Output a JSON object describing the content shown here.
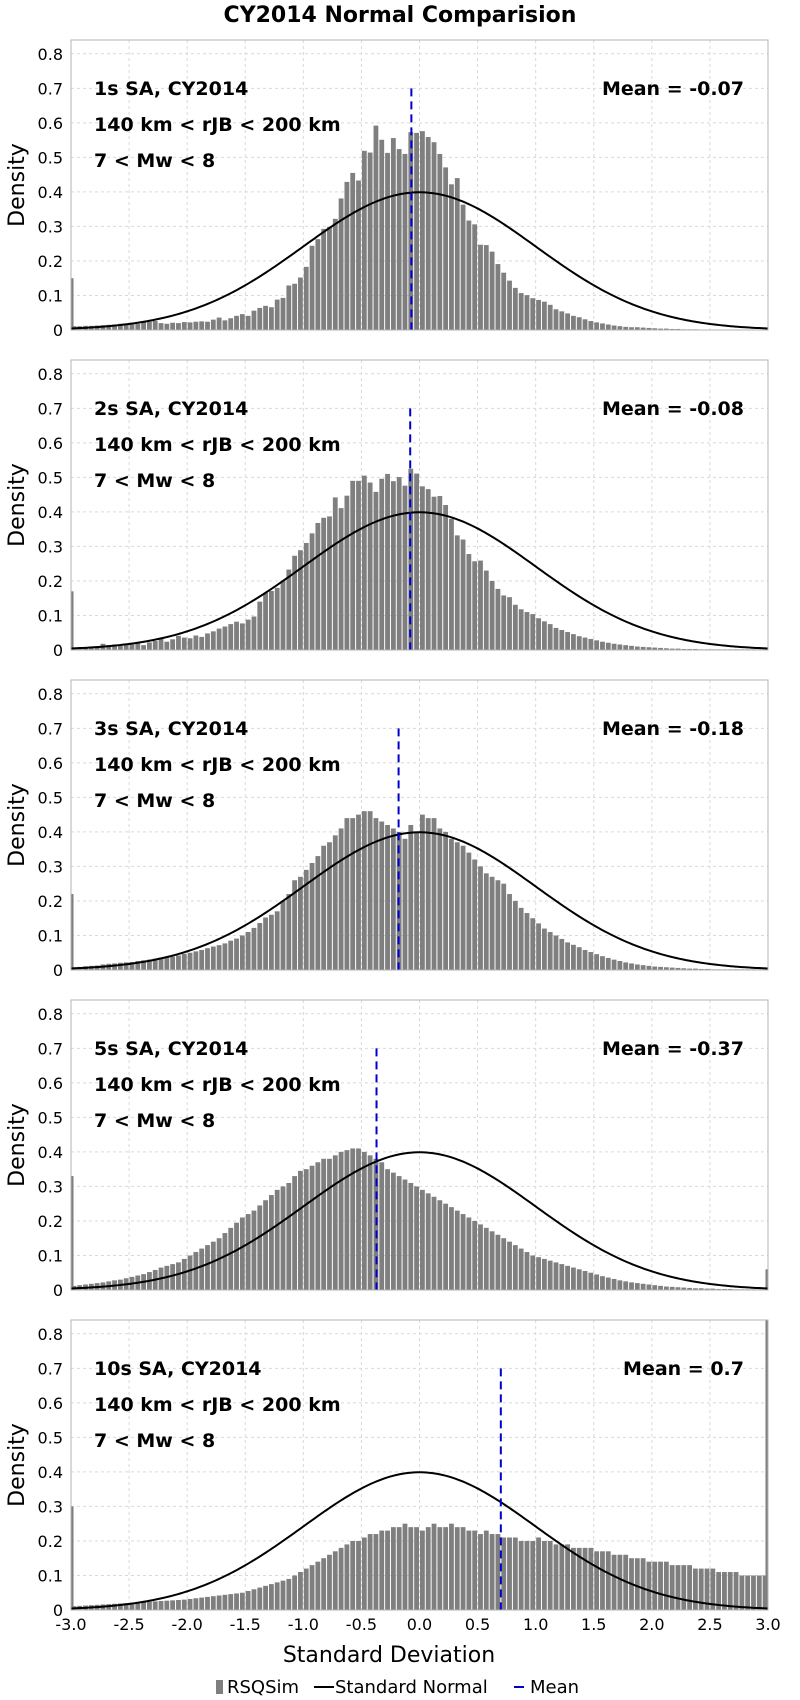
{
  "figure": {
    "title": "CY2014 Normal Comparision",
    "xlabel": "Standard Deviation",
    "ylabel": "Density"
  },
  "legend": {
    "placement": "bottom",
    "items": [
      "RSQSim",
      "Standard Normal",
      "Mean"
    ]
  },
  "colors": {
    "bars": "#7f7f7f",
    "normal_curve": "#000000",
    "mean_line": "#0000cc",
    "grid": "#d9d9d9",
    "frame": "#b3b3b3"
  },
  "chart_data": [
    {
      "type": "bar",
      "annotations": [
        "1s SA, CY2014",
        "140 km < rJB < 200 km",
        "7 < Mw < 8"
      ],
      "mean_label": "Mean = -0.07",
      "mean": -0.07,
      "mean_line_top": 0.7,
      "bin_width": 0.05,
      "x_start": -3.0,
      "xlim": [
        -3.0,
        3.0
      ],
      "ylim": [
        0,
        0.84
      ],
      "xticks": [
        "-3.0",
        "-2.5",
        "-2.0",
        "-1.5",
        "-1.0",
        "-0.5",
        "0.0",
        "0.5",
        "1.0",
        "1.5",
        "2.0",
        "2.5",
        "3.0"
      ],
      "yticks": [
        "0",
        "0.1",
        "0.2",
        "0.3",
        "0.4",
        "0.5",
        "0.6",
        "0.7",
        "0.8"
      ],
      "grid": true,
      "edge_left": 0.15,
      "edge_right": 0,
      "values": [
        0.011,
        0.011,
        0.012,
        0.012,
        0.013,
        0.014,
        0.015,
        0.016,
        0.018,
        0.019,
        0.021,
        0.018,
        0.022,
        0.024,
        0.026,
        0.02,
        0.018,
        0.021,
        0.02,
        0.023,
        0.022,
        0.024,
        0.025,
        0.024,
        0.03,
        0.036,
        0.028,
        0.034,
        0.041,
        0.046,
        0.041,
        0.056,
        0.064,
        0.07,
        0.066,
        0.088,
        0.093,
        0.129,
        0.134,
        0.152,
        0.183,
        0.244,
        0.263,
        0.293,
        0.299,
        0.322,
        0.381,
        0.429,
        0.455,
        0.433,
        0.519,
        0.514,
        0.592,
        0.551,
        0.513,
        0.556,
        0.524,
        0.51,
        0.573,
        0.571,
        0.576,
        0.559,
        0.544,
        0.51,
        0.471,
        0.422,
        0.44,
        0.363,
        0.317,
        0.306,
        0.247,
        0.246,
        0.227,
        0.191,
        0.166,
        0.143,
        0.122,
        0.107,
        0.101,
        0.092,
        0.087,
        0.082,
        0.073,
        0.06,
        0.054,
        0.048,
        0.041,
        0.037,
        0.031,
        0.026,
        0.022,
        0.019,
        0.016,
        0.013,
        0.011,
        0.009,
        0.008,
        0.008,
        0.007,
        0.006,
        0.005,
        0.004,
        0.004,
        0.003,
        0.003,
        0.002,
        0.002,
        0.002,
        0.001,
        0.001,
        0.001,
        0.001,
        0.001,
        0.001,
        0.001,
        0.001,
        0.001,
        0.001,
        0.001,
        0.001
      ],
      "normal_curve": {
        "mean": 0,
        "std": 1
      }
    },
    {
      "type": "bar",
      "annotations": [
        "2s SA, CY2014",
        "140 km < rJB < 200 km",
        "7 < Mw < 8"
      ],
      "mean_label": "Mean = -0.08",
      "mean": -0.08,
      "mean_line_top": 0.7,
      "bin_width": 0.05,
      "x_start": -3.0,
      "xlim": [
        -3.0,
        3.0
      ],
      "ylim": [
        0,
        0.84
      ],
      "xticks": [
        "-3.0",
        "-2.5",
        "-2.0",
        "-1.5",
        "-1.0",
        "-0.5",
        "0.0",
        "0.5",
        "1.0",
        "1.5",
        "2.0",
        "2.5",
        "3.0"
      ],
      "yticks": [
        "0",
        "0.1",
        "0.2",
        "0.3",
        "0.4",
        "0.5",
        "0.6",
        "0.7",
        "0.8"
      ],
      "grid": true,
      "edge_left": 0.17,
      "edge_right": 0,
      "values": [
        0.005,
        0.007,
        0.008,
        0.009,
        0.011,
        0.018,
        0.014,
        0.016,
        0.012,
        0.016,
        0.018,
        0.02,
        0.014,
        0.022,
        0.026,
        0.033,
        0.024,
        0.031,
        0.041,
        0.036,
        0.034,
        0.042,
        0.038,
        0.048,
        0.054,
        0.062,
        0.068,
        0.075,
        0.082,
        0.077,
        0.088,
        0.097,
        0.14,
        0.165,
        0.171,
        0.18,
        0.201,
        0.233,
        0.273,
        0.289,
        0.31,
        0.338,
        0.368,
        0.383,
        0.387,
        0.442,
        0.411,
        0.447,
        0.49,
        0.49,
        0.505,
        0.485,
        0.458,
        0.496,
        0.51,
        0.489,
        0.501,
        0.476,
        0.525,
        0.511,
        0.474,
        0.466,
        0.444,
        0.446,
        0.42,
        0.38,
        0.332,
        0.32,
        0.278,
        0.257,
        0.259,
        0.23,
        0.2,
        0.177,
        0.158,
        0.153,
        0.131,
        0.118,
        0.11,
        0.104,
        0.092,
        0.083,
        0.075,
        0.064,
        0.058,
        0.052,
        0.046,
        0.04,
        0.036,
        0.032,
        0.028,
        0.024,
        0.021,
        0.018,
        0.016,
        0.014,
        0.012,
        0.01,
        0.009,
        0.008,
        0.007,
        0.006,
        0.005,
        0.004,
        0.004,
        0.003,
        0.003,
        0.003,
        0.002,
        0.002,
        0.002,
        0.002,
        0.002,
        0.002,
        0.002,
        0.002,
        0.002,
        0.002,
        0.002,
        0.002
      ],
      "normal_curve": {
        "mean": 0,
        "std": 1
      }
    },
    {
      "type": "bar",
      "annotations": [
        "3s SA, CY2014",
        "140 km < rJB < 200 km",
        "7 < Mw < 8"
      ],
      "mean_label": "Mean = -0.18",
      "mean": -0.18,
      "mean_line_top": 0.7,
      "bin_width": 0.05,
      "x_start": -3.0,
      "xlim": [
        -3.0,
        3.0
      ],
      "ylim": [
        0,
        0.84
      ],
      "xticks": [
        "-3.0",
        "-2.5",
        "-2.0",
        "-1.5",
        "-1.0",
        "-0.5",
        "0.0",
        "0.5",
        "1.0",
        "1.5",
        "2.0",
        "2.5",
        "3.0"
      ],
      "yticks": [
        "0",
        "0.1",
        "0.2",
        "0.3",
        "0.4",
        "0.5",
        "0.6",
        "0.7",
        "0.8"
      ],
      "grid": true,
      "edge_left": 0.22,
      "edge_right": 0,
      "values": [
        0.008,
        0.009,
        0.011,
        0.012,
        0.013,
        0.016,
        0.018,
        0.019,
        0.021,
        0.022,
        0.023,
        0.026,
        0.028,
        0.03,
        0.033,
        0.036,
        0.036,
        0.039,
        0.042,
        0.047,
        0.05,
        0.054,
        0.058,
        0.063,
        0.068,
        0.072,
        0.077,
        0.085,
        0.091,
        0.1,
        0.11,
        0.122,
        0.136,
        0.152,
        0.16,
        0.17,
        0.2,
        0.22,
        0.26,
        0.27,
        0.29,
        0.31,
        0.33,
        0.36,
        0.37,
        0.39,
        0.41,
        0.44,
        0.44,
        0.45,
        0.46,
        0.46,
        0.44,
        0.43,
        0.42,
        0.41,
        0.4,
        0.38,
        0.42,
        0.4,
        0.45,
        0.44,
        0.44,
        0.41,
        0.4,
        0.38,
        0.37,
        0.36,
        0.34,
        0.32,
        0.3,
        0.28,
        0.27,
        0.26,
        0.25,
        0.22,
        0.2,
        0.18,
        0.165,
        0.15,
        0.135,
        0.12,
        0.11,
        0.1,
        0.09,
        0.08,
        0.073,
        0.066,
        0.058,
        0.052,
        0.046,
        0.04,
        0.035,
        0.03,
        0.026,
        0.022,
        0.019,
        0.016,
        0.014,
        0.012,
        0.01,
        0.009,
        0.008,
        0.007,
        0.006,
        0.005,
        0.004,
        0.004,
        0.003,
        0.003,
        0.002,
        0.002,
        0.002,
        0.002,
        0.002,
        0.002,
        0.002,
        0.002,
        0.002,
        0.002
      ],
      "normal_curve": {
        "mean": 0,
        "std": 1
      }
    },
    {
      "type": "bar",
      "annotations": [
        "5s SA, CY2014",
        "140 km < rJB < 200 km",
        "7 < Mw < 8"
      ],
      "mean_label": "Mean = -0.37",
      "mean": -0.37,
      "mean_line_top": 0.7,
      "bin_width": 0.05,
      "x_start": -3.0,
      "xlim": [
        -3.0,
        3.0
      ],
      "ylim": [
        0,
        0.84
      ],
      "xticks": [
        "-3.0",
        "-2.5",
        "-2.0",
        "-1.5",
        "-1.0",
        "-0.5",
        "0.0",
        "0.5",
        "1.0",
        "1.5",
        "2.0",
        "2.5",
        "3.0"
      ],
      "yticks": [
        "0",
        "0.1",
        "0.2",
        "0.3",
        "0.4",
        "0.5",
        "0.6",
        "0.7",
        "0.8"
      ],
      "grid": true,
      "edge_left": 0.33,
      "edge_right": 0.06,
      "values": [
        0.012,
        0.014,
        0.016,
        0.018,
        0.02,
        0.022,
        0.025,
        0.028,
        0.03,
        0.034,
        0.038,
        0.042,
        0.046,
        0.052,
        0.058,
        0.065,
        0.07,
        0.075,
        0.08,
        0.09,
        0.1,
        0.11,
        0.12,
        0.13,
        0.14,
        0.15,
        0.165,
        0.18,
        0.195,
        0.21,
        0.22,
        0.23,
        0.245,
        0.26,
        0.275,
        0.29,
        0.3,
        0.31,
        0.33,
        0.345,
        0.35,
        0.36,
        0.37,
        0.38,
        0.38,
        0.39,
        0.4,
        0.405,
        0.41,
        0.41,
        0.4,
        0.39,
        0.38,
        0.37,
        0.35,
        0.34,
        0.33,
        0.32,
        0.31,
        0.3,
        0.29,
        0.28,
        0.27,
        0.26,
        0.25,
        0.24,
        0.23,
        0.22,
        0.21,
        0.2,
        0.19,
        0.18,
        0.17,
        0.16,
        0.15,
        0.14,
        0.13,
        0.12,
        0.11,
        0.1,
        0.095,
        0.09,
        0.085,
        0.08,
        0.075,
        0.07,
        0.065,
        0.06,
        0.055,
        0.05,
        0.045,
        0.04,
        0.036,
        0.032,
        0.028,
        0.025,
        0.022,
        0.02,
        0.018,
        0.016,
        0.014,
        0.012,
        0.01,
        0.009,
        0.008,
        0.007,
        0.006,
        0.005,
        0.005,
        0.004,
        0.004,
        0.003,
        0.003,
        0.003,
        0.002,
        0.002,
        0.002,
        0.002,
        0.002,
        0.002
      ],
      "normal_curve": {
        "mean": 0,
        "std": 1
      }
    },
    {
      "type": "bar",
      "annotations": [
        "10s SA, CY2014",
        "140 km < rJB < 200 km",
        "7 < Mw < 8"
      ],
      "mean_label": "Mean = 0.7",
      "mean": 0.7,
      "mean_line_top": 0.7,
      "bin_width": 0.05,
      "x_start": -3.0,
      "xlim": [
        -3.0,
        3.0
      ],
      "ylim": [
        0,
        0.84
      ],
      "xticks": [
        "-3.0",
        "-2.5",
        "-2.0",
        "-1.5",
        "-1.0",
        "-0.5",
        "0.0",
        "0.5",
        "1.0",
        "1.5",
        "2.0",
        "2.5",
        "3.0"
      ],
      "yticks": [
        "0",
        "0.1",
        "0.2",
        "0.3",
        "0.4",
        "0.5",
        "0.6",
        "0.7",
        "0.8"
      ],
      "grid": true,
      "edge_left": 0.3,
      "edge_right": 0.84,
      "values": [
        0.011,
        0.012,
        0.013,
        0.014,
        0.015,
        0.016,
        0.017,
        0.018,
        0.019,
        0.02,
        0.021,
        0.022,
        0.023,
        0.024,
        0.025,
        0.026,
        0.027,
        0.028,
        0.029,
        0.03,
        0.032,
        0.034,
        0.036,
        0.038,
        0.04,
        0.042,
        0.044,
        0.046,
        0.048,
        0.05,
        0.055,
        0.06,
        0.065,
        0.07,
        0.075,
        0.08,
        0.085,
        0.09,
        0.1,
        0.11,
        0.12,
        0.13,
        0.14,
        0.15,
        0.16,
        0.17,
        0.18,
        0.19,
        0.2,
        0.2,
        0.21,
        0.22,
        0.22,
        0.23,
        0.23,
        0.24,
        0.24,
        0.25,
        0.24,
        0.24,
        0.23,
        0.24,
        0.25,
        0.24,
        0.24,
        0.25,
        0.24,
        0.24,
        0.23,
        0.23,
        0.22,
        0.23,
        0.22,
        0.22,
        0.21,
        0.21,
        0.21,
        0.2,
        0.2,
        0.2,
        0.21,
        0.2,
        0.2,
        0.19,
        0.19,
        0.19,
        0.18,
        0.18,
        0.18,
        0.18,
        0.17,
        0.17,
        0.17,
        0.16,
        0.16,
        0.16,
        0.15,
        0.15,
        0.15,
        0.14,
        0.14,
        0.14,
        0.14,
        0.13,
        0.13,
        0.13,
        0.13,
        0.12,
        0.12,
        0.12,
        0.12,
        0.11,
        0.11,
        0.11,
        0.11,
        0.1,
        0.1,
        0.1,
        0.1,
        0.1
      ],
      "normal_curve": {
        "mean": 0,
        "std": 1
      }
    }
  ]
}
